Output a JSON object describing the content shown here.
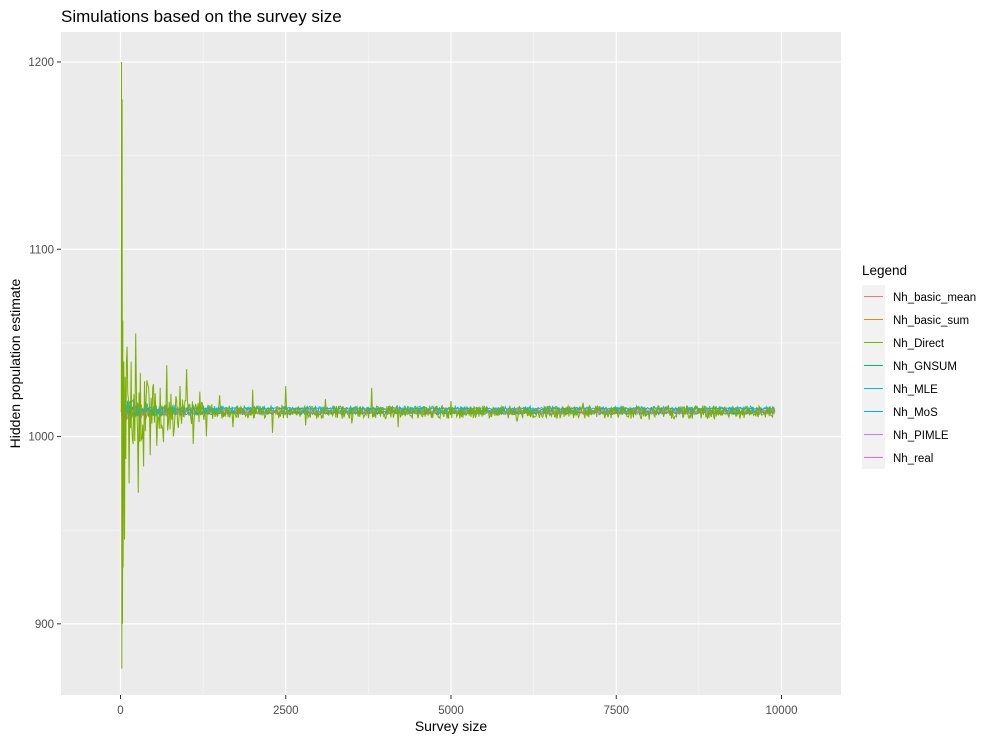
{
  "chart_data": {
    "type": "line",
    "title": "Simulations based on the survey size",
    "xlabel": "Survey size",
    "ylabel": "Hidden population estimate",
    "xlim": [
      -900,
      10900
    ],
    "ylim": [
      862,
      1216
    ],
    "xticks": [
      0,
      2500,
      5000,
      7500,
      10000
    ],
    "xtick_labels": [
      "0",
      "2500",
      "5000",
      "7500",
      "10000"
    ],
    "yticks": [
      900,
      1000,
      1100,
      1200
    ],
    "ytick_labels": [
      "900",
      "1000",
      "1100",
      "1200"
    ],
    "grid": true,
    "panel_background": "#ebebeb",
    "legend": {
      "title": "Legend",
      "position": "right"
    },
    "series": [
      {
        "name": "Nh_basic_mean",
        "color": "#F8766D",
        "base": 1013,
        "amp": 1.0,
        "x": [
          10,
          5000,
          9900
        ],
        "y": [
          1013,
          1013,
          1013
        ]
      },
      {
        "name": "Nh_basic_sum",
        "color": "#CD9600",
        "base": 1013.5,
        "amp": 1.6,
        "x": [
          10,
          5000,
          9900
        ],
        "y": [
          1013.5,
          1013.5,
          1013.5
        ]
      },
      {
        "name": "Nh_Direct",
        "color": "#7CAE00",
        "base": 1013,
        "amp": 6,
        "x": [
          10,
          15,
          20,
          25,
          30,
          35,
          40,
          50,
          60,
          70,
          80,
          100,
          130,
          160,
          190,
          230,
          270,
          300,
          350,
          400,
          450,
          500,
          550,
          600,
          650,
          700,
          800,
          900,
          1000,
          1100,
          1200,
          1300,
          1500,
          1700,
          2000,
          2300,
          2500,
          2800,
          3100,
          3500,
          3800,
          4200,
          5000,
          6000,
          7000,
          8000,
          9000,
          9900
        ],
        "y": [
          1013,
          1200,
          876,
          1180,
          900,
          1062,
          930,
          1040,
          945,
          1032,
          988,
          1048,
          975,
          1040,
          996,
          1055,
          970,
          1034,
          984,
          1030,
          990,
          1028,
          995,
          1026,
          997,
          1038,
          1000,
          1027,
          1036,
          996,
          1024,
          1000,
          1022,
          1005,
          1025,
          1002,
          1027,
          1006,
          1020,
          1007,
          1026,
          1005,
          1019,
          1008,
          1018,
          1009,
          1016,
          1013
        ]
      },
      {
        "name": "Nh_GNSUM",
        "color": "#00BE67",
        "base": 1012.5,
        "amp": 0.8,
        "x": [
          10,
          5000,
          9900
        ],
        "y": [
          1012.5,
          1012.5,
          1012.5
        ]
      },
      {
        "name": "Nh_MLE",
        "color": "#00BFC4",
        "base": 1014.5,
        "amp": 1.8,
        "x": [
          10,
          5000,
          9900
        ],
        "y": [
          1014.5,
          1014.5,
          1014.5
        ]
      },
      {
        "name": "Nh_MoS",
        "color": "#00A9FF",
        "base": 1015,
        "amp": 0.5,
        "x": [
          10,
          5000,
          9900
        ],
        "y": [
          1015,
          1015,
          1015
        ]
      },
      {
        "name": "Nh_PIMLE",
        "color": "#C77CFF",
        "base": 1013.2,
        "amp": 1.2,
        "x": [
          10,
          5000,
          9900
        ],
        "y": [
          1013.2,
          1013.2,
          1013.2
        ]
      },
      {
        "name": "Nh_real",
        "color": "#FF61CC",
        "base": 1013,
        "amp": 0,
        "x": [
          10,
          9900
        ],
        "y": [
          1013,
          1013
        ]
      }
    ]
  }
}
